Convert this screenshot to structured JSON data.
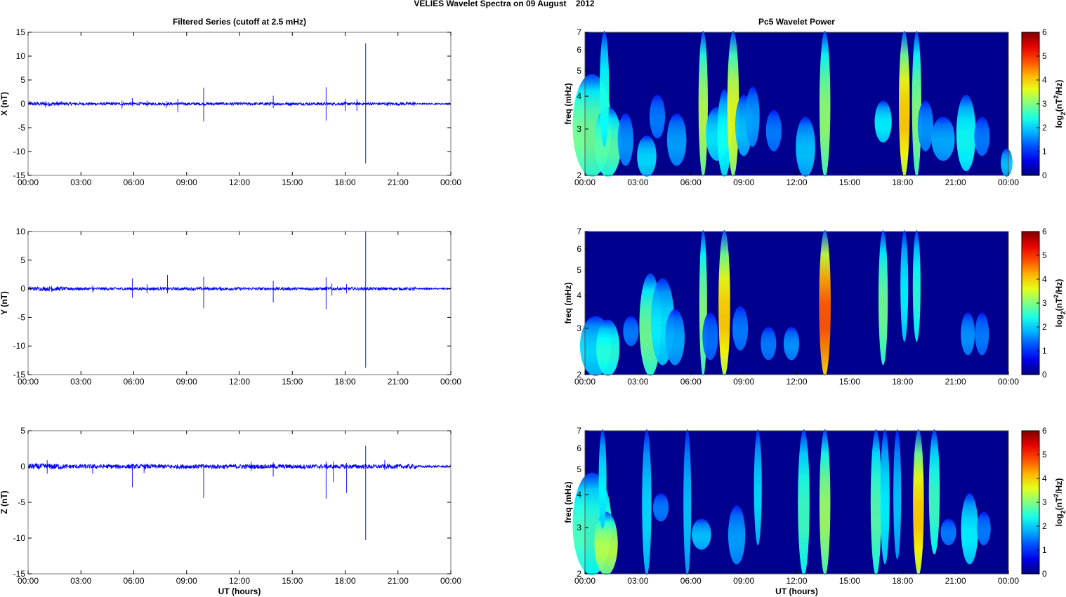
{
  "figure": {
    "title": "VELIES Wavelet Spectra on 09 August    2012",
    "left_column_title": "Filtered Series (cutoff at 2.5 mHz)",
    "right_column_title": "Pc5 Wavelet Power",
    "colors": {
      "trace": "#0000ff",
      "axis": "#000000",
      "background": "#ffffff"
    }
  },
  "chart_data": [
    {
      "type": "line",
      "title": "Filtered Series (cutoff at 2.5 mHz)",
      "xlabel": "",
      "ylabel": "X (nT)",
      "xlim": [
        "00:00",
        "00:00"
      ],
      "ylim": [
        -15,
        15
      ],
      "x_ticks": [
        "00:00",
        "03:00",
        "06:00",
        "09:00",
        "12:00",
        "15:00",
        "18:00",
        "21:00",
        "00:00"
      ],
      "y_ticks": [
        15,
        10,
        5,
        0,
        -5,
        -10,
        -15
      ],
      "baseline_noise_nT": 0.3,
      "spikes": [
        {
          "t": "01:00",
          "min": -0.8,
          "max": 0.6
        },
        {
          "t": "05:20",
          "min": -1.0,
          "max": 0.7
        },
        {
          "t": "05:55",
          "min": -0.5,
          "max": 1.2
        },
        {
          "t": "06:45",
          "min": -0.6,
          "max": 0.7
        },
        {
          "t": "07:50",
          "min": -0.9,
          "max": 0.6
        },
        {
          "t": "08:30",
          "min": -1.8,
          "max": 1.0
        },
        {
          "t": "09:58",
          "min": -3.7,
          "max": 3.4
        },
        {
          "t": "13:55",
          "min": -0.9,
          "max": 1.7
        },
        {
          "t": "16:55",
          "min": -3.5,
          "max": 3.5
        },
        {
          "t": "18:00",
          "min": -1.5,
          "max": 1.0
        },
        {
          "t": "18:40",
          "min": -1.5,
          "max": 1.0
        },
        {
          "t": "19:10",
          "min": -12.5,
          "max": 12.7
        },
        {
          "t": "21:55",
          "min": -0.5,
          "max": 0.5
        }
      ]
    },
    {
      "type": "line",
      "xlabel": "",
      "ylabel": "Y (nT)",
      "xlim": [
        "00:00",
        "00:00"
      ],
      "ylim": [
        -15,
        10
      ],
      "x_ticks": [
        "00:00",
        "03:00",
        "06:00",
        "09:00",
        "12:00",
        "15:00",
        "18:00",
        "21:00",
        "00:00"
      ],
      "y_ticks": [
        10,
        5,
        0,
        -5,
        -10,
        -15
      ],
      "baseline_noise_nT": 0.25,
      "spikes": [
        {
          "t": "01:20",
          "min": -0.5,
          "max": 0.5
        },
        {
          "t": "03:40",
          "min": -0.6,
          "max": 0.6
        },
        {
          "t": "05:55",
          "min": -1.6,
          "max": 1.8
        },
        {
          "t": "06:45",
          "min": -0.8,
          "max": 0.8
        },
        {
          "t": "07:55",
          "min": -0.8,
          "max": 2.4
        },
        {
          "t": "09:58",
          "min": -3.4,
          "max": 2.1
        },
        {
          "t": "13:55",
          "min": -2.4,
          "max": 1.4
        },
        {
          "t": "16:55",
          "min": -3.6,
          "max": 2.0
        },
        {
          "t": "17:15",
          "min": -1.2,
          "max": 0.9
        },
        {
          "t": "18:05",
          "min": -0.8,
          "max": 0.8
        },
        {
          "t": "19:10",
          "min": -13.8,
          "max": 10.0
        },
        {
          "t": "21:55",
          "min": -0.4,
          "max": 0.4
        }
      ]
    },
    {
      "type": "line",
      "xlabel": "UT (hours)",
      "ylabel": "Z (nT)",
      "xlim": [
        "00:00",
        "00:00"
      ],
      "ylim": [
        -15,
        5
      ],
      "x_ticks": [
        "00:00",
        "03:00",
        "06:00",
        "09:00",
        "12:00",
        "15:00",
        "18:00",
        "21:00",
        "00:00"
      ],
      "y_ticks": [
        5,
        0,
        -5,
        -10,
        -15
      ],
      "baseline_noise_nT": 0.3,
      "spikes": [
        {
          "t": "01:05",
          "min": -1.0,
          "max": 0.9
        },
        {
          "t": "03:40",
          "min": -1.0,
          "max": 0.3
        },
        {
          "t": "05:55",
          "min": -2.9,
          "max": 0.4
        },
        {
          "t": "06:35",
          "min": -0.9,
          "max": 0.3
        },
        {
          "t": "09:58",
          "min": -4.4,
          "max": 0.3
        },
        {
          "t": "12:40",
          "min": -0.6,
          "max": 0.7
        },
        {
          "t": "13:55",
          "min": -1.4,
          "max": 0.6
        },
        {
          "t": "16:55",
          "min": -4.5,
          "max": 0.7
        },
        {
          "t": "17:20",
          "min": -2.2,
          "max": 0.7
        },
        {
          "t": "18:05",
          "min": -3.7,
          "max": 0.5
        },
        {
          "t": "19:10",
          "min": -10.3,
          "max": 2.9
        },
        {
          "t": "20:15",
          "min": -0.5,
          "max": 0.9
        }
      ]
    },
    {
      "type": "heatmap",
      "title": "Pc5 Wavelet Power",
      "xlabel": "",
      "ylabel": "freq (mHz)",
      "colorbar_label": "log2(nT2/Hz)",
      "colorbar_ticks": [
        6,
        5,
        4,
        3,
        2,
        1,
        0
      ],
      "zlim": [
        0,
        6
      ],
      "ylim": [
        2,
        7
      ],
      "y_ticks": [
        7,
        6,
        5,
        4,
        3,
        2
      ],
      "x_ticks": [
        "00:00",
        "03:00",
        "06:00",
        "09:00",
        "12:00",
        "15:00",
        "18:00",
        "21:00",
        "00:00"
      ],
      "scale": "log",
      "features": [
        {
          "t": 0.4,
          "f0": 2.0,
          "f1": 4.8,
          "p": 3.0,
          "w": 0.5
        },
        {
          "t": 1.3,
          "f0": 2.0,
          "f1": 3.6,
          "p": 2.8,
          "w": 0.35
        },
        {
          "t": 1.1,
          "f0": 2.6,
          "f1": 7.0,
          "p": 2.3,
          "w": 0.12
        },
        {
          "t": 2.3,
          "f0": 2.2,
          "f1": 3.4,
          "p": 1.2,
          "w": 0.2
        },
        {
          "t": 3.5,
          "f0": 2.0,
          "f1": 2.8,
          "p": 1.8,
          "w": 0.25
        },
        {
          "t": 4.1,
          "f0": 2.8,
          "f1": 4.0,
          "p": 1.0,
          "w": 0.2
        },
        {
          "t": 5.2,
          "f0": 2.2,
          "f1": 3.4,
          "p": 1.3,
          "w": 0.25
        },
        {
          "t": 6.7,
          "f0": 2.0,
          "f1": 7.0,
          "p": 3.6,
          "w": 0.12
        },
        {
          "t": 7.5,
          "f0": 2.3,
          "f1": 3.6,
          "p": 1.9,
          "w": 0.3
        },
        {
          "t": 7.9,
          "f0": 2.0,
          "f1": 4.2,
          "p": 2.2,
          "w": 0.18
        },
        {
          "t": 8.4,
          "f0": 2.0,
          "f1": 7.0,
          "p": 4.0,
          "w": 0.15
        },
        {
          "t": 9.0,
          "f0": 2.4,
          "f1": 4.0,
          "p": 1.6,
          "w": 0.22
        },
        {
          "t": 9.5,
          "f0": 2.6,
          "f1": 4.3,
          "p": 1.3,
          "w": 0.18
        },
        {
          "t": 10.7,
          "f0": 2.5,
          "f1": 3.5,
          "p": 1.0,
          "w": 0.2
        },
        {
          "t": 12.5,
          "f0": 2.0,
          "f1": 3.3,
          "p": 1.6,
          "w": 0.25
        },
        {
          "t": 13.6,
          "f0": 2.0,
          "f1": 7.0,
          "p": 3.3,
          "w": 0.14
        },
        {
          "t": 16.9,
          "f0": 2.7,
          "f1": 3.8,
          "p": 2.0,
          "w": 0.22
        },
        {
          "t": 18.1,
          "f0": 2.0,
          "f1": 7.0,
          "p": 4.6,
          "w": 0.14
        },
        {
          "t": 18.8,
          "f0": 2.0,
          "f1": 7.0,
          "p": 3.2,
          "w": 0.12
        },
        {
          "t": 19.3,
          "f0": 2.5,
          "f1": 3.8,
          "p": 1.2,
          "w": 0.2
        },
        {
          "t": 20.3,
          "f0": 2.3,
          "f1": 3.3,
          "p": 1.4,
          "w": 0.3
        },
        {
          "t": 21.6,
          "f0": 2.1,
          "f1": 4.0,
          "p": 2.2,
          "w": 0.25
        },
        {
          "t": 22.5,
          "f0": 2.4,
          "f1": 3.3,
          "p": 1.0,
          "w": 0.2
        },
        {
          "t": 23.9,
          "f0": 2.0,
          "f1": 2.5,
          "p": 1.6,
          "w": 0.15
        }
      ]
    },
    {
      "type": "heatmap",
      "xlabel": "",
      "ylabel": "freq (mHz)",
      "colorbar_label": "log2(nT2/Hz)",
      "colorbar_ticks": [
        6,
        5,
        4,
        3,
        2,
        1,
        0
      ],
      "zlim": [
        0,
        6
      ],
      "ylim": [
        2,
        7
      ],
      "y_ticks": [
        7,
        6,
        5,
        4,
        3,
        2
      ],
      "x_ticks": [
        "00:00",
        "03:00",
        "06:00",
        "09:00",
        "12:00",
        "15:00",
        "18:00",
        "21:00",
        "00:00"
      ],
      "scale": "log",
      "features": [
        {
          "t": 0.6,
          "f0": 2.0,
          "f1": 3.3,
          "p": 1.8,
          "w": 0.4
        },
        {
          "t": 1.3,
          "f0": 2.0,
          "f1": 3.2,
          "p": 2.4,
          "w": 0.3
        },
        {
          "t": 2.6,
          "f0": 2.6,
          "f1": 3.3,
          "p": 1.0,
          "w": 0.2
        },
        {
          "t": 3.7,
          "f0": 2.0,
          "f1": 4.8,
          "p": 3.0,
          "w": 0.28
        },
        {
          "t": 4.4,
          "f0": 2.2,
          "f1": 4.6,
          "p": 1.9,
          "w": 0.3
        },
        {
          "t": 5.1,
          "f0": 2.2,
          "f1": 3.5,
          "p": 1.4,
          "w": 0.25
        },
        {
          "t": 6.7,
          "f0": 2.0,
          "f1": 7.0,
          "p": 3.2,
          "w": 0.1
        },
        {
          "t": 7.1,
          "f0": 2.3,
          "f1": 3.4,
          "p": 0.9,
          "w": 0.2
        },
        {
          "t": 7.9,
          "f0": 2.0,
          "f1": 7.0,
          "p": 4.6,
          "w": 0.15
        },
        {
          "t": 8.8,
          "f0": 2.5,
          "f1": 3.6,
          "p": 1.0,
          "w": 0.2
        },
        {
          "t": 10.4,
          "f0": 2.3,
          "f1": 3.0,
          "p": 1.0,
          "w": 0.2
        },
        {
          "t": 11.7,
          "f0": 2.3,
          "f1": 3.0,
          "p": 1.2,
          "w": 0.2
        },
        {
          "t": 13.6,
          "f0": 2.0,
          "f1": 7.0,
          "p": 5.6,
          "w": 0.15
        },
        {
          "t": 16.9,
          "f0": 2.2,
          "f1": 7.0,
          "p": 3.0,
          "w": 0.12
        },
        {
          "t": 18.1,
          "f0": 2.7,
          "f1": 7.0,
          "p": 2.0,
          "w": 0.1
        },
        {
          "t": 18.8,
          "f0": 2.7,
          "f1": 7.0,
          "p": 2.4,
          "w": 0.1
        },
        {
          "t": 21.7,
          "f0": 2.4,
          "f1": 3.4,
          "p": 1.2,
          "w": 0.18
        },
        {
          "t": 22.5,
          "f0": 2.4,
          "f1": 3.4,
          "p": 1.0,
          "w": 0.18
        }
      ]
    },
    {
      "type": "heatmap",
      "xlabel": "UT (hours)",
      "ylabel": "freq (mHz)",
      "colorbar_label": "log2(nT2/Hz)",
      "colorbar_ticks": [
        6,
        5,
        4,
        3,
        2,
        1,
        0
      ],
      "zlim": [
        0,
        6
      ],
      "ylim": [
        2,
        7
      ],
      "y_ticks": [
        7,
        6,
        5,
        4,
        3,
        2
      ],
      "x_ticks": [
        "00:00",
        "03:00",
        "06:00",
        "09:00",
        "12:00",
        "15:00",
        "18:00",
        "21:00",
        "00:00"
      ],
      "scale": "log",
      "features": [
        {
          "t": 0.4,
          "f0": 2.0,
          "f1": 4.8,
          "p": 2.6,
          "w": 0.5
        },
        {
          "t": 1.2,
          "f0": 2.0,
          "f1": 3.4,
          "p": 3.6,
          "w": 0.3
        },
        {
          "t": 1.0,
          "f0": 3.0,
          "f1": 7.0,
          "p": 2.0,
          "w": 0.1
        },
        {
          "t": 3.5,
          "f0": 2.0,
          "f1": 7.0,
          "p": 1.8,
          "w": 0.12
        },
        {
          "t": 4.3,
          "f0": 3.2,
          "f1": 4.0,
          "p": 1.0,
          "w": 0.2
        },
        {
          "t": 5.8,
          "f0": 2.0,
          "f1": 7.0,
          "p": 1.6,
          "w": 0.1
        },
        {
          "t": 6.6,
          "f0": 2.5,
          "f1": 3.2,
          "p": 1.6,
          "w": 0.25
        },
        {
          "t": 8.6,
          "f0": 2.2,
          "f1": 3.6,
          "p": 1.3,
          "w": 0.22
        },
        {
          "t": 9.8,
          "f0": 2.6,
          "f1": 7.0,
          "p": 1.8,
          "w": 0.1
        },
        {
          "t": 12.4,
          "f0": 2.0,
          "f1": 7.0,
          "p": 2.6,
          "w": 0.15
        },
        {
          "t": 13.6,
          "f0": 2.0,
          "f1": 7.0,
          "p": 3.4,
          "w": 0.14
        },
        {
          "t": 16.5,
          "f0": 2.0,
          "f1": 7.0,
          "p": 2.8,
          "w": 0.14
        },
        {
          "t": 17.0,
          "f0": 2.2,
          "f1": 7.0,
          "p": 2.0,
          "w": 0.12
        },
        {
          "t": 17.7,
          "f0": 2.3,
          "f1": 7.0,
          "p": 1.6,
          "w": 0.1
        },
        {
          "t": 18.9,
          "f0": 2.0,
          "f1": 7.0,
          "p": 4.6,
          "w": 0.14
        },
        {
          "t": 19.8,
          "f0": 2.4,
          "f1": 7.0,
          "p": 2.6,
          "w": 0.14
        },
        {
          "t": 20.6,
          "f0": 2.6,
          "f1": 3.2,
          "p": 1.0,
          "w": 0.2
        },
        {
          "t": 21.8,
          "f0": 2.2,
          "f1": 4.0,
          "p": 2.0,
          "w": 0.22
        },
        {
          "t": 22.6,
          "f0": 2.6,
          "f1": 3.4,
          "p": 1.0,
          "w": 0.18
        }
      ]
    }
  ]
}
